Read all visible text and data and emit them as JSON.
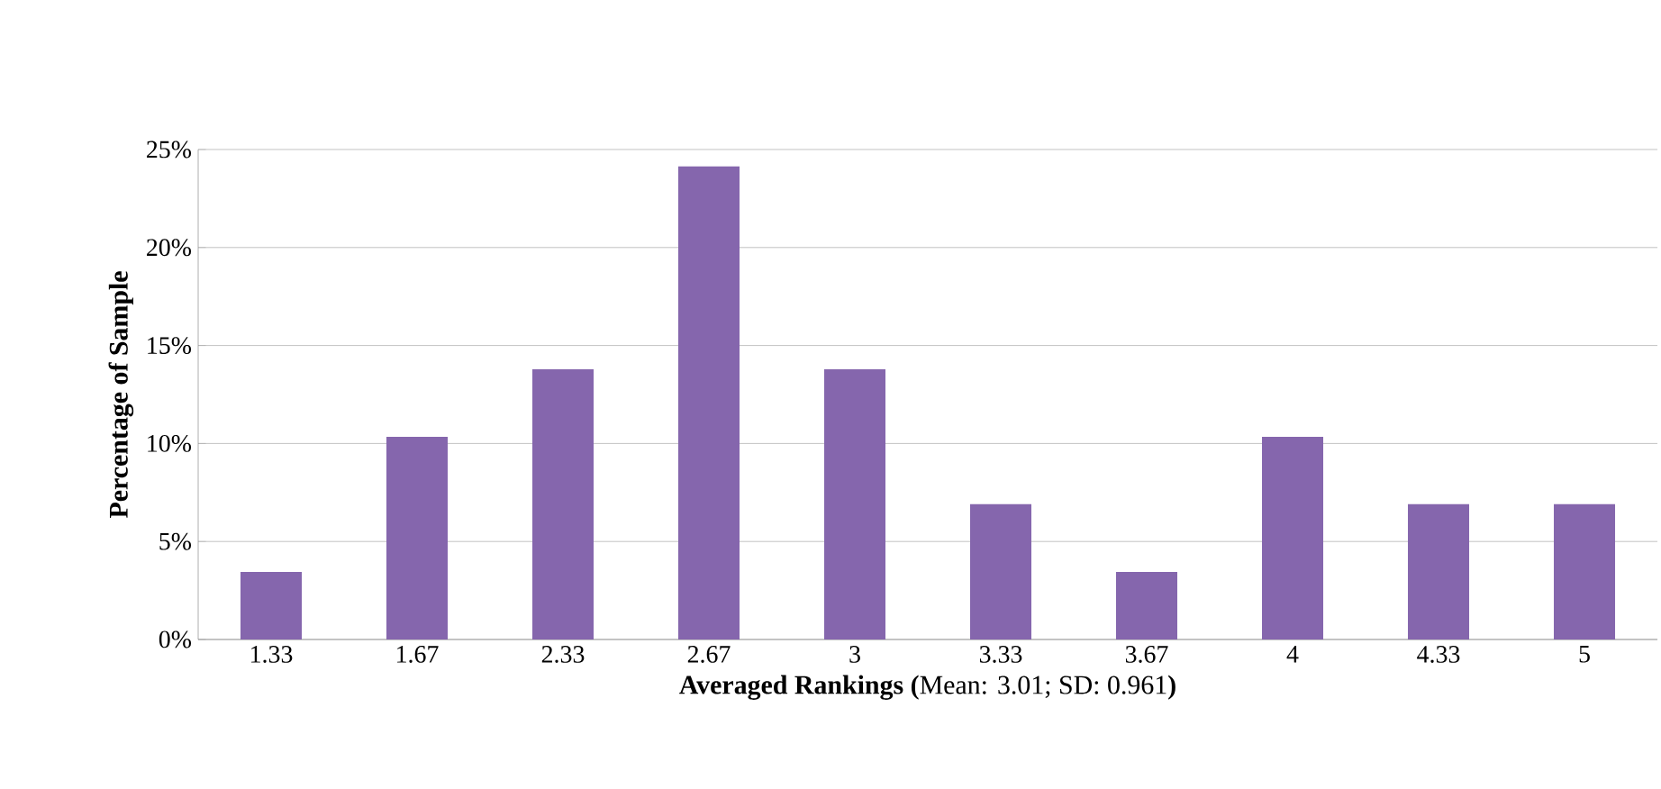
{
  "chart_data": {
    "type": "bar",
    "xlabel": "**Averaged Rankings (**Mean: 3.01; SD: 0.961**)**",
    "ylabel": "Percentage of Sample",
    "categories": [
      "1.33",
      "1.67",
      "2.33",
      "2.67",
      "3",
      "3.33",
      "3.67",
      "4",
      "4.33",
      "5"
    ],
    "values": [
      3.45,
      10.34,
      13.79,
      24.14,
      13.79,
      6.9,
      3.45,
      10.34,
      6.9,
      6.9
    ],
    "color": "#8566ad",
    "ylim": [
      0,
      25
    ],
    "yticks": [
      {
        "value": 0,
        "label": "0%"
      },
      {
        "value": 5,
        "label": "5%"
      },
      {
        "value": 10,
        "label": "10%"
      },
      {
        "value": 15,
        "label": "15%"
      },
      {
        "value": 20,
        "label": "20%"
      },
      {
        "value": 25,
        "label": "25%"
      }
    ],
    "grid": "y"
  }
}
